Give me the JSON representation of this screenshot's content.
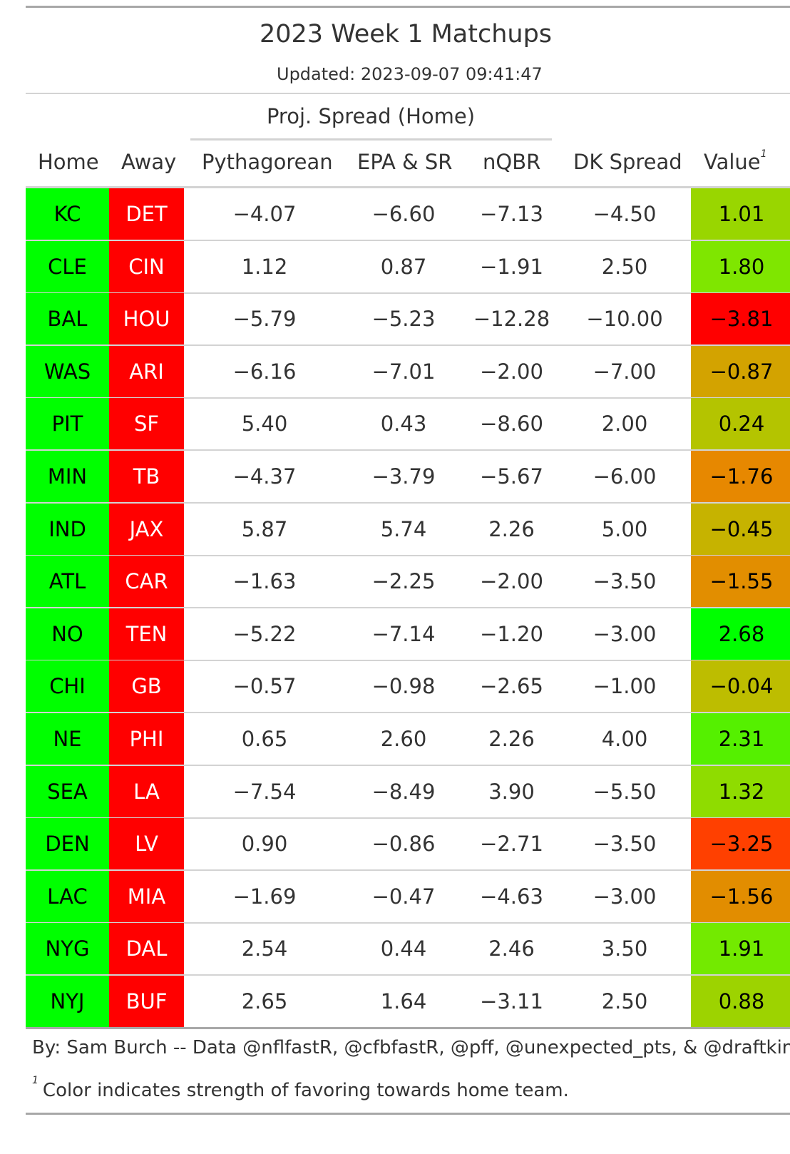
{
  "table": {
    "title": "2023 Week 1 Matchups",
    "subtitle": "Updated: 2023-09-07 09:41:47",
    "spanner": "Proj. Spread (Home)",
    "columns": {
      "home": "Home",
      "away": "Away",
      "pythagorean": "Pythagorean",
      "epa_sr": "EPA & SR",
      "nqbr": "nQBR",
      "dk_spread": "DK Spread",
      "value": "Value",
      "value_footnote_mark": "1"
    },
    "rows": [
      {
        "home": "KC",
        "away": "DET",
        "pythagorean": "−4.07",
        "epa_sr": "−6.60",
        "nqbr": "−7.13",
        "dk_spread": "−4.50",
        "value": "1.01",
        "value_color": "#99d600"
      },
      {
        "home": "CLE",
        "away": "CIN",
        "pythagorean": "1.12",
        "epa_sr": "0.87",
        "nqbr": "−1.91",
        "dk_spread": "2.50",
        "value": "1.80",
        "value_color": "#7fe600"
      },
      {
        "home": "BAL",
        "away": "HOU",
        "pythagorean": "−5.79",
        "epa_sr": "−5.23",
        "nqbr": "−12.28",
        "dk_spread": "−10.00",
        "value": "−3.81",
        "value_color": "#ff0000"
      },
      {
        "home": "WAS",
        "away": "ARI",
        "pythagorean": "−6.16",
        "epa_sr": "−7.01",
        "nqbr": "−2.00",
        "dk_spread": "−7.00",
        "value": "−0.87",
        "value_color": "#d3a300"
      },
      {
        "home": "PIT",
        "away": "SF",
        "pythagorean": "5.40",
        "epa_sr": "0.43",
        "nqbr": "−8.60",
        "dk_spread": "2.00",
        "value": "0.24",
        "value_color": "#b4c400"
      },
      {
        "home": "MIN",
        "away": "TB",
        "pythagorean": "−4.37",
        "epa_sr": "−3.79",
        "nqbr": "−5.67",
        "dk_spread": "−6.00",
        "value": "−1.76",
        "value_color": "#e78800"
      },
      {
        "home": "IND",
        "away": "JAX",
        "pythagorean": "5.87",
        "epa_sr": "5.74",
        "nqbr": "2.26",
        "dk_spread": "5.00",
        "value": "−0.45",
        "value_color": "#c6b300"
      },
      {
        "home": "ATL",
        "away": "CAR",
        "pythagorean": "−1.63",
        "epa_sr": "−2.25",
        "nqbr": "−2.00",
        "dk_spread": "−3.50",
        "value": "−1.55",
        "value_color": "#e28e00"
      },
      {
        "home": "NO",
        "away": "TEN",
        "pythagorean": "−5.22",
        "epa_sr": "−7.14",
        "nqbr": "−1.20",
        "dk_spread": "−3.00",
        "value": "2.68",
        "value_color": "#00ff00"
      },
      {
        "home": "CHI",
        "away": "GB",
        "pythagorean": "−0.57",
        "epa_sr": "−0.98",
        "nqbr": "−2.65",
        "dk_spread": "−1.00",
        "value": "−0.04",
        "value_color": "#bdbd00"
      },
      {
        "home": "NE",
        "away": "PHI",
        "pythagorean": "0.65",
        "epa_sr": "2.60",
        "nqbr": "2.26",
        "dk_spread": "4.00",
        "value": "2.31",
        "value_color": "#55f000"
      },
      {
        "home": "SEA",
        "away": "LA",
        "pythagorean": "−7.54",
        "epa_sr": "−8.49",
        "nqbr": "3.90",
        "dk_spread": "−5.50",
        "value": "1.32",
        "value_color": "#8fdc00"
      },
      {
        "home": "DEN",
        "away": "LV",
        "pythagorean": "0.90",
        "epa_sr": "−0.86",
        "nqbr": "−2.71",
        "dk_spread": "−3.50",
        "value": "−3.25",
        "value_color": "#ff4000"
      },
      {
        "home": "LAC",
        "away": "MIA",
        "pythagorean": "−1.69",
        "epa_sr": "−0.47",
        "nqbr": "−4.63",
        "dk_spread": "−3.00",
        "value": "−1.56",
        "value_color": "#e28d00"
      },
      {
        "home": "NYG",
        "away": "DAL",
        "pythagorean": "2.54",
        "epa_sr": "0.44",
        "nqbr": "2.46",
        "dk_spread": "3.50",
        "value": "1.91",
        "value_color": "#73ea00"
      },
      {
        "home": "NYJ",
        "away": "BUF",
        "pythagorean": "2.65",
        "epa_sr": "1.64",
        "nqbr": "−3.11",
        "dk_spread": "2.50",
        "value": "0.88",
        "value_color": "#9dd300"
      }
    ],
    "home_color": "#00ff00",
    "away_color": "#ff0000",
    "source_note": "By: Sam Burch -- Data @nflfastR, @cfbfastR, @pff, @unexpected_pts, & @draftkings",
    "footnote_mark": "1",
    "footnote": "Color indicates strength of favoring towards home team."
  }
}
